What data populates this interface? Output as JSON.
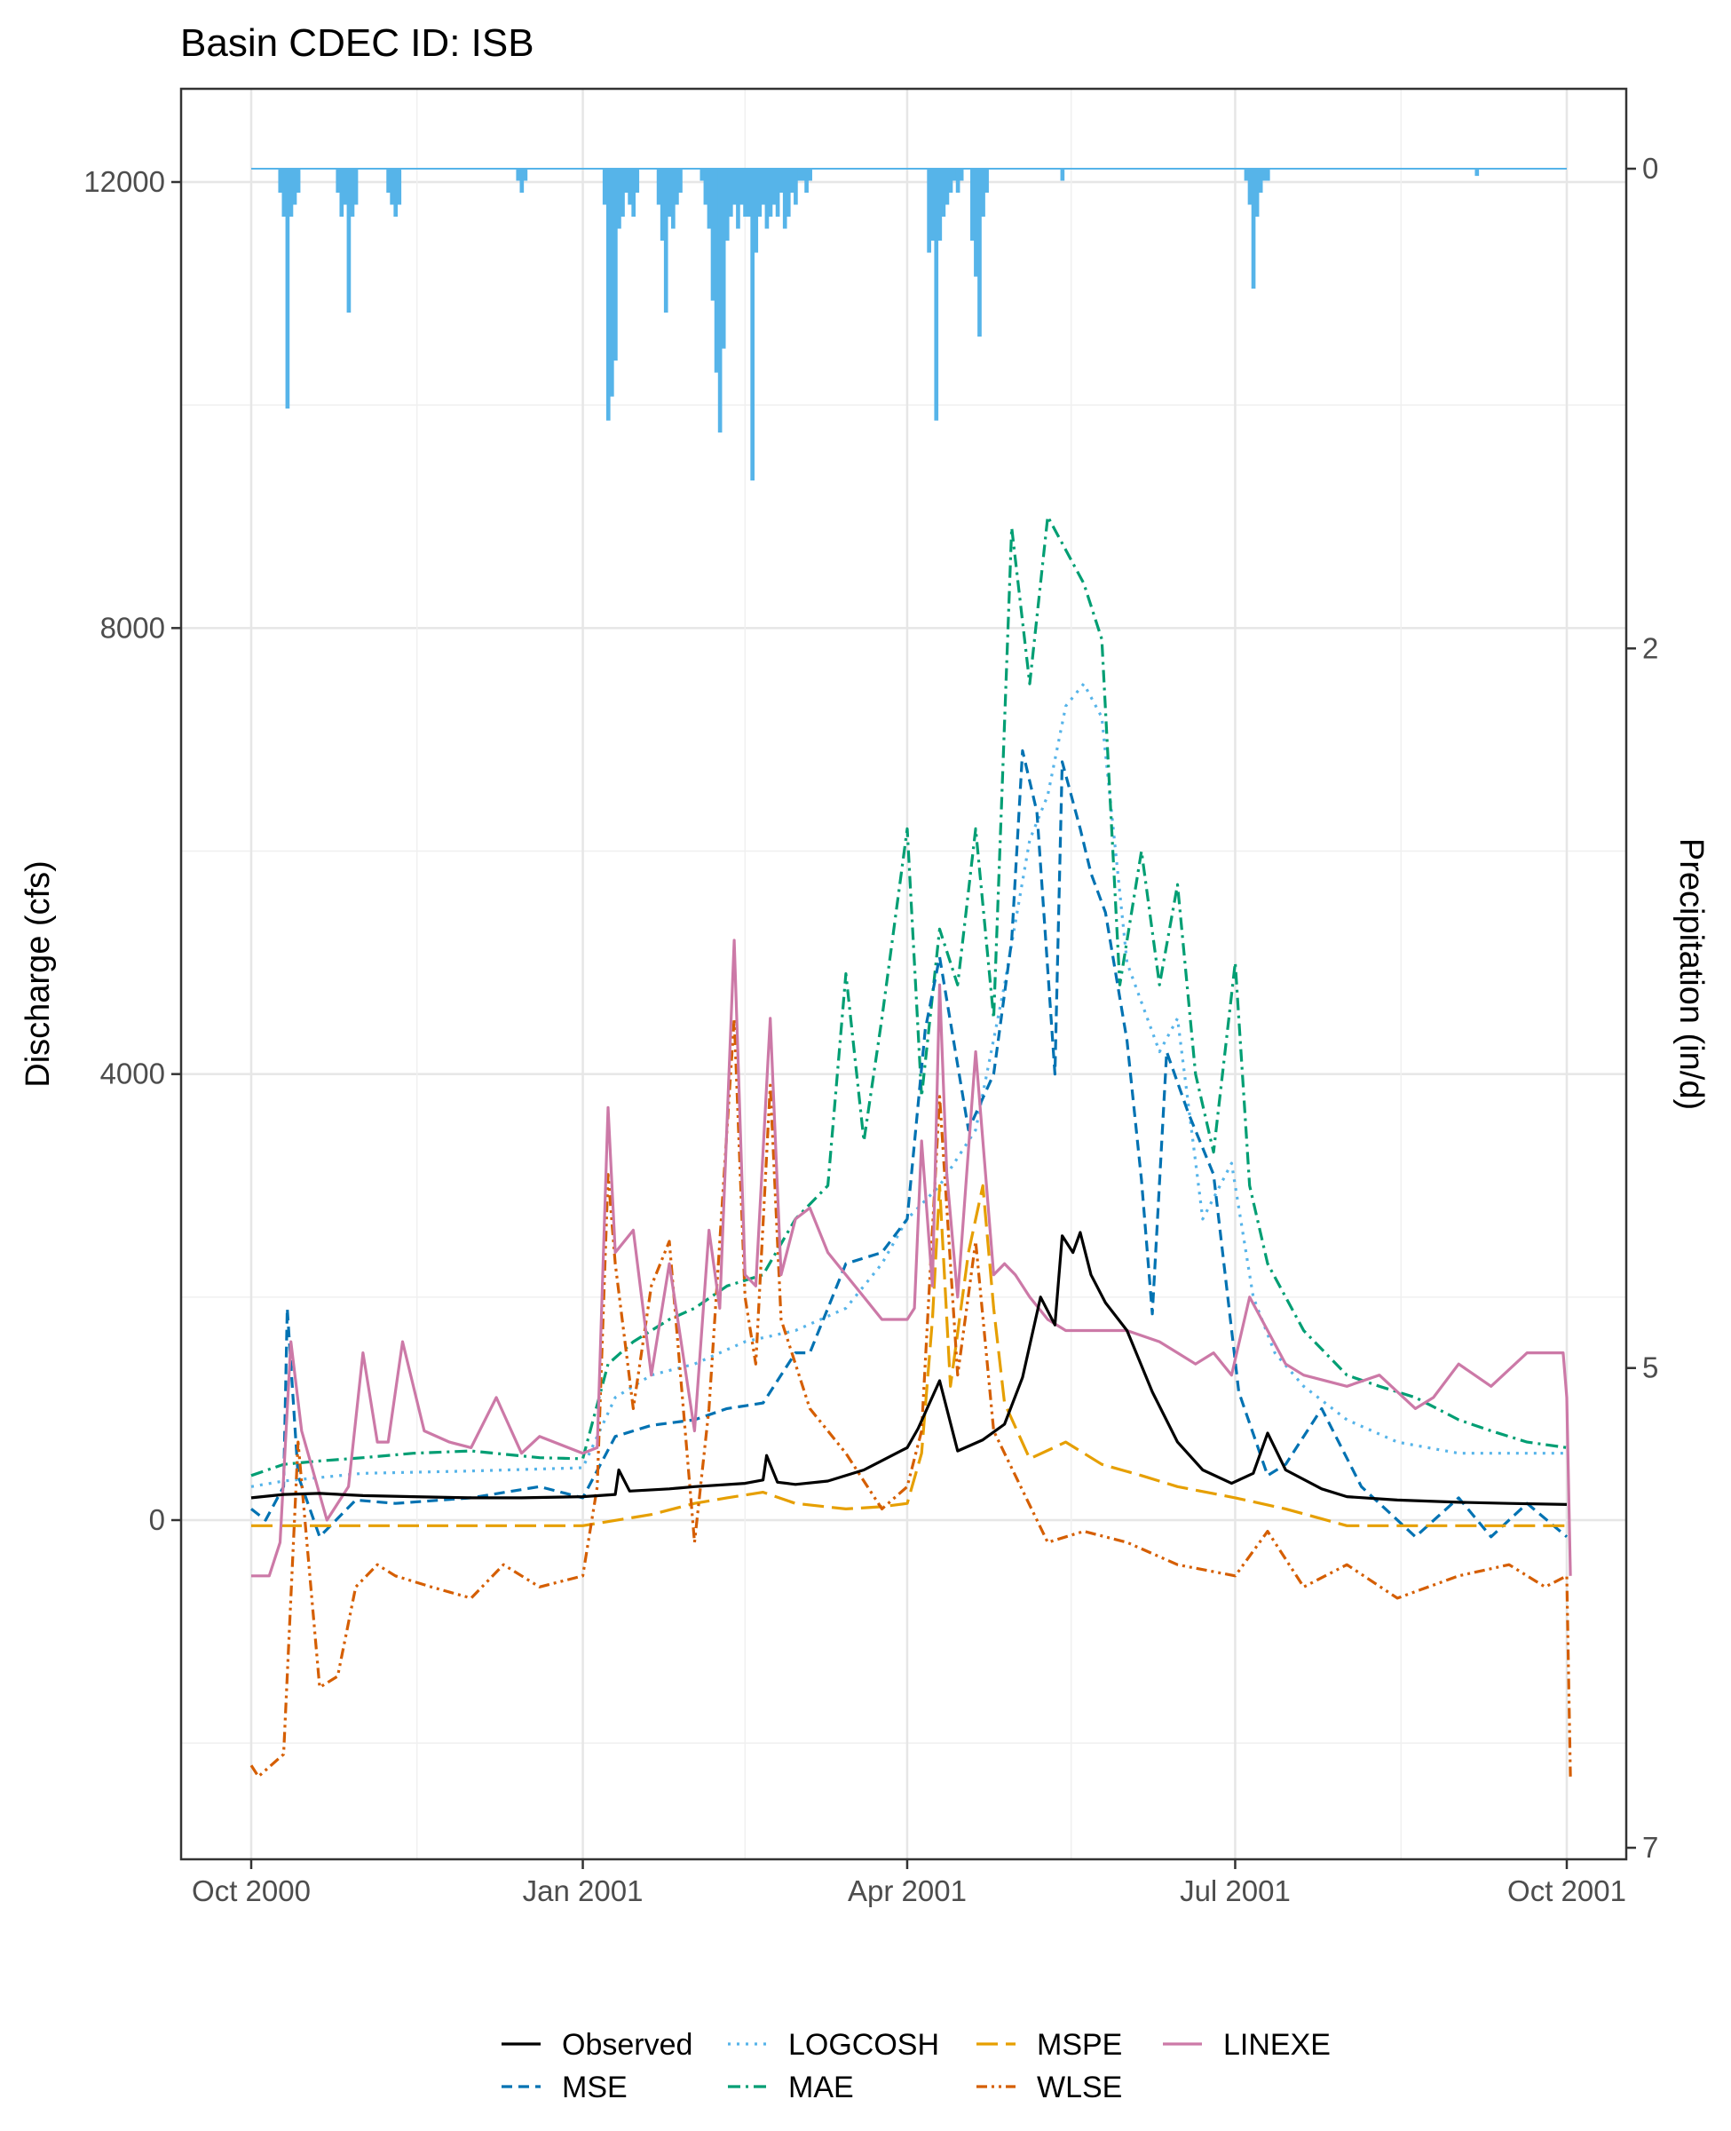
{
  "chart_data": {
    "type": "line",
    "title": "Basin CDEC ID: ISB",
    "ylabel": "Discharge (cfs)",
    "y2label": "Precipitation (in/d)",
    "xlabel": "",
    "x_range": [
      "2000-10-01",
      "2001-10-01"
    ],
    "ylim": [
      -3000,
      13000
    ],
    "y2lim": [
      7,
      -0.6
    ],
    "y2_reversed": true,
    "grid": true,
    "legend_position": "bottom",
    "x_ticks": [
      {
        "date": "2000-10-01",
        "label": "Oct 2000"
      },
      {
        "date": "2001-01-01",
        "label": "Jan 2001"
      },
      {
        "date": "2001-04-01",
        "label": "Apr 2001"
      },
      {
        "date": "2001-07-01",
        "label": "Jul 2001"
      },
      {
        "date": "2001-10-01",
        "label": "Oct 2001"
      }
    ],
    "y_ticks": [
      {
        "value": 0,
        "label": "0"
      },
      {
        "value": 4000,
        "label": "4000"
      },
      {
        "value": 8000,
        "label": "8000"
      },
      {
        "value": 12000,
        "label": "12000"
      }
    ],
    "y2_ticks": [
      {
        "value": 0,
        "label": "0"
      },
      {
        "value": 2,
        "label": "2"
      },
      {
        "value": 5,
        "label": "5"
      },
      {
        "value": 7,
        "label": "7"
      }
    ],
    "precipitation": {
      "color": "#56B4E9",
      "x": [
        "2000-10-09",
        "2000-10-10",
        "2000-10-11",
        "2000-10-12",
        "2000-10-13",
        "2000-10-14",
        "2000-10-25",
        "2000-10-26",
        "2000-10-27",
        "2000-10-28",
        "2000-10-29",
        "2000-10-30",
        "2000-11-08",
        "2000-11-09",
        "2000-11-10",
        "2000-11-11",
        "2000-12-14",
        "2000-12-15",
        "2000-12-16",
        "2001-01-07",
        "2001-01-08",
        "2001-01-09",
        "2001-01-10",
        "2001-01-11",
        "2001-01-12",
        "2001-01-13",
        "2001-01-14",
        "2001-01-15",
        "2001-01-16",
        "2001-01-22",
        "2001-01-23",
        "2001-01-24",
        "2001-01-25",
        "2001-01-26",
        "2001-01-27",
        "2001-01-28",
        "2001-02-03",
        "2001-02-04",
        "2001-02-05",
        "2001-02-06",
        "2001-02-07",
        "2001-02-08",
        "2001-02-09",
        "2001-02-10",
        "2001-02-11",
        "2001-02-12",
        "2001-02-13",
        "2001-02-14",
        "2001-02-15",
        "2001-02-16",
        "2001-02-17",
        "2001-02-18",
        "2001-02-19",
        "2001-02-20",
        "2001-02-21",
        "2001-02-22",
        "2001-02-23",
        "2001-02-24",
        "2001-02-25",
        "2001-02-26",
        "2001-02-27",
        "2001-02-28",
        "2001-03-01",
        "2001-03-02",
        "2001-03-03",
        "2001-03-04",
        "2001-03-05",
        "2001-04-07",
        "2001-04-08",
        "2001-04-09",
        "2001-04-10",
        "2001-04-11",
        "2001-04-12",
        "2001-04-13",
        "2001-04-14",
        "2001-04-15",
        "2001-04-16",
        "2001-04-19",
        "2001-04-20",
        "2001-04-21",
        "2001-04-22",
        "2001-04-23",
        "2001-05-14",
        "2001-07-04",
        "2001-07-05",
        "2001-07-06",
        "2001-07-07",
        "2001-07-08",
        "2001-07-09",
        "2001-07-10",
        "2001-09-06"
      ],
      "values": [
        0.1,
        0.2,
        1.0,
        0.2,
        0.15,
        0.1,
        0.1,
        0.2,
        0.15,
        0.6,
        0.2,
        0.15,
        0.1,
        0.15,
        0.2,
        0.15,
        0.05,
        0.1,
        0.05,
        0.15,
        1.05,
        0.95,
        0.8,
        0.25,
        0.2,
        0.1,
        0.15,
        0.2,
        0.1,
        0.15,
        0.3,
        0.6,
        0.2,
        0.25,
        0.15,
        0.1,
        0.05,
        0.15,
        0.25,
        0.55,
        0.85,
        1.1,
        0.75,
        0.3,
        0.2,
        0.15,
        0.25,
        0.15,
        0.2,
        0.2,
        1.3,
        0.35,
        0.2,
        0.15,
        0.25,
        0.2,
        0.15,
        0.2,
        0.1,
        0.25,
        0.2,
        0.1,
        0.15,
        0.05,
        0.05,
        0.1,
        0.05,
        0.35,
        0.3,
        1.05,
        0.3,
        0.2,
        0.15,
        0.1,
        0.05,
        0.1,
        0.05,
        0.3,
        0.45,
        0.7,
        0.2,
        0.1,
        0.05,
        0.05,
        0.15,
        0.5,
        0.2,
        0.1,
        0.05,
        0.05,
        0.03
      ]
    },
    "series": [
      {
        "name": "Observed",
        "color": "#000000",
        "dash": "",
        "width": 3.2,
        "x": [
          "2000-10-01",
          "2000-10-10",
          "2000-10-20",
          "2000-11-01",
          "2000-11-15",
          "2000-12-01",
          "2000-12-15",
          "2001-01-01",
          "2001-01-10",
          "2001-01-11",
          "2001-01-14",
          "2001-01-25",
          "2001-02-01",
          "2001-02-15",
          "2001-02-20",
          "2001-02-21",
          "2001-02-24",
          "2001-03-01",
          "2001-03-10",
          "2001-03-20",
          "2001-04-01",
          "2001-04-04",
          "2001-04-10",
          "2001-04-15",
          "2001-04-22",
          "2001-04-28",
          "2001-05-03",
          "2001-05-08",
          "2001-05-12",
          "2001-05-14",
          "2001-05-17",
          "2001-05-19",
          "2001-05-22",
          "2001-05-26",
          "2001-06-01",
          "2001-06-08",
          "2001-06-15",
          "2001-06-22",
          "2001-06-30",
          "2001-07-06",
          "2001-07-10",
          "2001-07-15",
          "2001-07-25",
          "2001-08-01",
          "2001-08-15",
          "2001-09-01",
          "2001-09-15",
          "2001-10-01"
        ],
        "values": [
          200,
          230,
          240,
          220,
          210,
          200,
          200,
          210,
          230,
          450,
          260,
          280,
          300,
          330,
          360,
          580,
          340,
          320,
          350,
          450,
          650,
          820,
          1250,
          620,
          720,
          860,
          1280,
          2000,
          1750,
          2550,
          2400,
          2580,
          2200,
          1950,
          1700,
          1150,
          700,
          450,
          330,
          420,
          780,
          450,
          280,
          210,
          180,
          160,
          150,
          140
        ]
      },
      {
        "name": "MSE",
        "color": "#0072B2",
        "dash": "12,7",
        "width": 3.2,
        "x": [
          "2000-10-01",
          "2000-10-05",
          "2000-10-10",
          "2000-10-11",
          "2000-10-14",
          "2000-10-20",
          "2000-10-30",
          "2000-11-10",
          "2000-12-01",
          "2000-12-20",
          "2001-01-01",
          "2001-01-10",
          "2001-01-20",
          "2001-02-01",
          "2001-02-10",
          "2001-02-20",
          "2001-03-01",
          "2001-03-05",
          "2001-03-15",
          "2001-03-25",
          "2001-04-01",
          "2001-04-06",
          "2001-04-10",
          "2001-04-18",
          "2001-04-25",
          "2001-04-30",
          "2001-05-03",
          "2001-05-07",
          "2001-05-12",
          "2001-05-14",
          "2001-05-19",
          "2001-05-22",
          "2001-05-26",
          "2001-06-01",
          "2001-06-05",
          "2001-06-08",
          "2001-06-12",
          "2001-06-18",
          "2001-06-25",
          "2001-07-02",
          "2001-07-10",
          "2001-07-15",
          "2001-07-25",
          "2001-08-05",
          "2001-08-20",
          "2001-09-01",
          "2001-09-10",
          "2001-09-20",
          "2001-10-01"
        ],
        "values": [
          100,
          0,
          300,
          1900,
          400,
          -150,
          180,
          150,
          200,
          300,
          200,
          750,
          850,
          900,
          1000,
          1050,
          1500,
          1500,
          2300,
          2400,
          2700,
          4400,
          5050,
          3500,
          4000,
          5200,
          6900,
          6350,
          4000,
          6800,
          6200,
          5800,
          5450,
          4300,
          3050,
          1850,
          4200,
          3650,
          3100,
          1150,
          400,
          500,
          1000,
          300,
          -150,
          200,
          -150,
          150,
          -150
        ]
      },
      {
        "name": "LOGCOSH",
        "color": "#56B4E9",
        "dash": "3,7",
        "width": 3.2,
        "x": [
          "2000-10-01",
          "2000-10-10",
          "2000-11-01",
          "2000-12-01",
          "2001-01-01",
          "2001-01-10",
          "2001-01-20",
          "2001-02-01",
          "2001-02-15",
          "2001-03-01",
          "2001-03-15",
          "2001-03-25",
          "2001-04-01",
          "2001-04-10",
          "2001-04-20",
          "2001-04-28",
          "2001-05-05",
          "2001-05-10",
          "2001-05-15",
          "2001-05-20",
          "2001-05-25",
          "2001-06-01",
          "2001-06-10",
          "2001-06-15",
          "2001-06-22",
          "2001-06-30",
          "2001-07-06",
          "2001-07-12",
          "2001-07-20",
          "2001-08-01",
          "2001-08-15",
          "2001-09-01",
          "2001-09-15",
          "2001-10-01"
        ],
        "values": [
          300,
          350,
          420,
          440,
          470,
          1100,
          1300,
          1400,
          1600,
          1700,
          1900,
          2300,
          2700,
          3000,
          3500,
          4800,
          6100,
          6500,
          7300,
          7500,
          7200,
          5000,
          4200,
          4500,
          2700,
          3200,
          2000,
          1500,
          1200,
          900,
          700,
          600,
          600,
          600
        ]
      },
      {
        "name": "MAE",
        "color": "#009E73",
        "dash": "14,6,3,6",
        "width": 3.2,
        "x": [
          "2000-10-01",
          "2000-10-10",
          "2000-10-20",
          "2000-11-01",
          "2000-11-15",
          "2000-12-01",
          "2000-12-20",
          "2001-01-01",
          "2001-01-08",
          "2001-01-15",
          "2001-01-25",
          "2001-02-01",
          "2001-02-10",
          "2001-02-20",
          "2001-03-01",
          "2001-03-10",
          "2001-03-15",
          "2001-03-20",
          "2001-03-25",
          "2001-04-01",
          "2001-04-05",
          "2001-04-10",
          "2001-04-15",
          "2001-04-20",
          "2001-04-25",
          "2001-04-30",
          "2001-05-05",
          "2001-05-10",
          "2001-05-15",
          "2001-05-20",
          "2001-05-25",
          "2001-05-30",
          "2001-06-05",
          "2001-06-10",
          "2001-06-15",
          "2001-06-20",
          "2001-06-25",
          "2001-07-01",
          "2001-07-05",
          "2001-07-10",
          "2001-07-20",
          "2001-08-01",
          "2001-08-10",
          "2001-08-20",
          "2001-09-01",
          "2001-09-10",
          "2001-09-20",
          "2001-10-01"
        ],
        "values": [
          400,
          500,
          530,
          560,
          600,
          620,
          560,
          550,
          1400,
          1600,
          1800,
          1900,
          2100,
          2200,
          2700,
          3000,
          4900,
          3400,
          4500,
          6200,
          3800,
          5300,
          4800,
          6200,
          4500,
          8900,
          7500,
          9000,
          8700,
          8400,
          7900,
          4800,
          6000,
          4800,
          5700,
          4000,
          3300,
          5000,
          3000,
          2300,
          1700,
          1300,
          1200,
          1100,
          900,
          800,
          700,
          650
        ]
      },
      {
        "name": "MSPE",
        "color": "#E69F00",
        "dash": "24,9",
        "width": 3.2,
        "x": [
          "2000-10-01",
          "2000-11-01",
          "2000-12-01",
          "2001-01-01",
          "2001-01-20",
          "2001-02-01",
          "2001-02-10",
          "2001-02-20",
          "2001-03-01",
          "2001-03-15",
          "2001-03-25",
          "2001-04-01",
          "2001-04-05",
          "2001-04-08",
          "2001-04-10",
          "2001-04-13",
          "2001-04-18",
          "2001-04-22",
          "2001-04-25",
          "2001-04-28",
          "2001-05-05",
          "2001-05-15",
          "2001-05-25",
          "2001-06-05",
          "2001-06-15",
          "2001-07-01",
          "2001-07-15",
          "2001-08-01",
          "2001-09-01",
          "2001-10-01"
        ],
        "values": [
          -50,
          -50,
          -50,
          -50,
          50,
          150,
          200,
          250,
          150,
          100,
          120,
          150,
          600,
          1800,
          3000,
          1200,
          2400,
          3000,
          1900,
          1050,
          550,
          700,
          500,
          400,
          300,
          200,
          100,
          -50,
          -50,
          -50
        ]
      },
      {
        "name": "WLSE",
        "color": "#D55E00",
        "dash": "12,5,3,5,3,5",
        "width": 3.2,
        "x": [
          "2000-10-01",
          "2000-10-03",
          "2000-10-10",
          "2000-10-14",
          "2000-10-20",
          "2000-10-25",
          "2000-10-30",
          "2000-11-05",
          "2000-11-10",
          "2000-11-20",
          "2000-12-01",
          "2000-12-10",
          "2000-12-20",
          "2001-01-01",
          "2001-01-05",
          "2001-01-08",
          "2001-01-10",
          "2001-01-15",
          "2001-01-20",
          "2001-01-25",
          "2001-02-01",
          "2001-02-05",
          "2001-02-12",
          "2001-02-15",
          "2001-02-18",
          "2001-02-22",
          "2001-02-25",
          "2001-03-01",
          "2001-03-05",
          "2001-03-15",
          "2001-03-25",
          "2001-04-01",
          "2001-04-05",
          "2001-04-10",
          "2001-04-15",
          "2001-04-20",
          "2001-04-25",
          "2001-05-01",
          "2001-05-10",
          "2001-05-20",
          "2001-06-01",
          "2001-06-15",
          "2001-07-01",
          "2001-07-10",
          "2001-07-20",
          "2001-08-01",
          "2001-08-15",
          "2001-09-01",
          "2001-09-15",
          "2001-09-25",
          "2001-10-01",
          "2001-10-02"
        ],
        "values": [
          -2200,
          -2300,
          -2100,
          700,
          -1500,
          -1400,
          -600,
          -400,
          -500,
          -600,
          -700,
          -400,
          -600,
          -500,
          300,
          3100,
          2300,
          1000,
          2100,
          2500,
          -200,
          1000,
          4500,
          2000,
          1400,
          3900,
          1800,
          1400,
          1000,
          600,
          100,
          300,
          800,
          3800,
          1300,
          2500,
          800,
          400,
          -200,
          -100,
          -200,
          -400,
          -500,
          -100,
          -600,
          -400,
          -700,
          -500,
          -400,
          -600,
          -500,
          -2300
        ]
      },
      {
        "name": "LINEXE",
        "color": "#CC79A7",
        "dash": "",
        "width": 3.2,
        "x": [
          "2000-10-01",
          "2000-10-06",
          "2000-10-09",
          "2000-10-12",
          "2000-10-15",
          "2000-10-22",
          "2000-10-28",
          "2000-11-01",
          "2000-11-05",
          "2000-11-08",
          "2000-11-12",
          "2000-11-18",
          "2000-11-25",
          "2000-12-01",
          "2000-12-08",
          "2000-12-15",
          "2000-12-20",
          "2001-01-01",
          "2001-01-05",
          "2001-01-08",
          "2001-01-10",
          "2001-01-15",
          "2001-01-20",
          "2001-01-25",
          "2001-02-01",
          "2001-02-05",
          "2001-02-08",
          "2001-02-12",
          "2001-02-15",
          "2001-02-18",
          "2001-02-22",
          "2001-02-25",
          "2001-03-01",
          "2001-03-05",
          "2001-03-10",
          "2001-03-15",
          "2001-03-20",
          "2001-03-25",
          "2001-04-01",
          "2001-04-03",
          "2001-04-05",
          "2001-04-08",
          "2001-04-10",
          "2001-04-12",
          "2001-04-15",
          "2001-04-20",
          "2001-04-25",
          "2001-04-28",
          "2001-05-01",
          "2001-05-05",
          "2001-05-10",
          "2001-05-15",
          "2001-05-20",
          "2001-05-25",
          "2001-06-01",
          "2001-06-10",
          "2001-06-15",
          "2001-06-20",
          "2001-06-25",
          "2001-06-30",
          "2001-07-05",
          "2001-07-10",
          "2001-07-15",
          "2001-07-20",
          "2001-08-01",
          "2001-08-10",
          "2001-08-20",
          "2001-08-25",
          "2001-09-01",
          "2001-09-10",
          "2001-09-20",
          "2001-09-30",
          "2001-10-01",
          "2001-10-02"
        ],
        "values": [
          -500,
          -500,
          -200,
          1600,
          800,
          0,
          300,
          1500,
          700,
          700,
          1600,
          800,
          700,
          650,
          1100,
          600,
          750,
          600,
          650,
          3700,
          2400,
          2600,
          1300,
          2300,
          800,
          2600,
          1900,
          5200,
          2200,
          2100,
          4500,
          2200,
          2700,
          2800,
          2400,
          2200,
          2000,
          1800,
          1800,
          1900,
          3400,
          2100,
          4800,
          3100,
          2000,
          4200,
          2200,
          2300,
          2200,
          2000,
          1800,
          1700,
          1700,
          1700,
          1700,
          1600,
          1500,
          1400,
          1500,
          1300,
          2000,
          1700,
          1400,
          1300,
          1200,
          1300,
          1000,
          1100,
          1400,
          1200,
          1500,
          1500,
          1100,
          -500
        ]
      }
    ]
  }
}
